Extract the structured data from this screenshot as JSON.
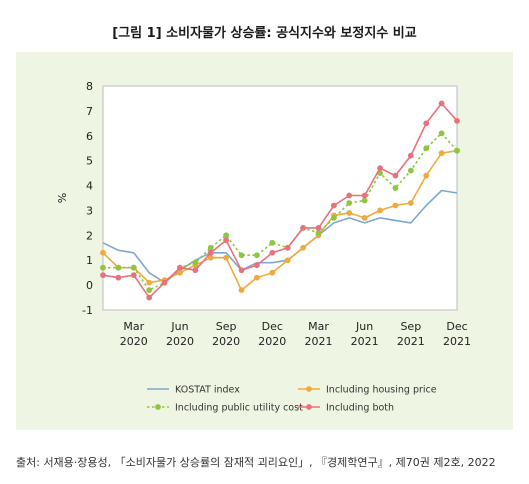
{
  "title": "[그림 1] 소비자물가 상승률: 공식지수와 보정지수 비교",
  "source": "출처: 서재용·장용성, 「소비자물가 상승률의 잠재적 괴리요인」, 『경제학연구』, 제70권 제2호, 2022",
  "chart_data": {
    "type": "line",
    "ylabel": "%",
    "ylim": [
      -1,
      8
    ],
    "yticks": [
      -1,
      0,
      1,
      2,
      3,
      4,
      5,
      6,
      7,
      8
    ],
    "xticks": [
      {
        "month": "Mar",
        "year": "2020",
        "index": 2
      },
      {
        "month": "Jun",
        "year": "2020",
        "index": 5
      },
      {
        "month": "Sep",
        "year": "2020",
        "index": 8
      },
      {
        "month": "Dec",
        "year": "2020",
        "index": 11
      },
      {
        "month": "Mar",
        "year": "2021",
        "index": 14
      },
      {
        "month": "Jun",
        "year": "2021",
        "index": 17
      },
      {
        "month": "Sep",
        "year": "2021",
        "index": 20
      },
      {
        "month": "Dec",
        "year": "2021",
        "index": 23
      }
    ],
    "x": [
      "2020-01",
      "2020-02",
      "2020-03",
      "2020-04",
      "2020-05",
      "2020-06",
      "2020-07",
      "2020-08",
      "2020-09",
      "2020-10",
      "2020-11",
      "2020-12",
      "2021-01",
      "2021-02",
      "2021-03",
      "2021-04",
      "2021-05",
      "2021-06",
      "2021-07",
      "2021-08",
      "2021-09",
      "2021-10",
      "2021-11",
      "2021-12"
    ],
    "series": [
      {
        "name": "KOSTAT index",
        "color": "#7fa7cf",
        "style": "solid",
        "marker": false,
        "values": [
          1.7,
          1.4,
          1.3,
          0.5,
          0.1,
          0.6,
          1.0,
          1.3,
          1.3,
          0.6,
          0.9,
          0.9,
          1.0,
          1.5,
          2.0,
          2.5,
          2.7,
          2.5,
          2.7,
          2.6,
          2.5,
          3.2,
          3.8,
          3.7
        ]
      },
      {
        "name": "Including housing price",
        "color": "#f2a93b",
        "style": "solid",
        "marker": true,
        "values": [
          1.3,
          0.7,
          0.7,
          0.1,
          0.2,
          0.5,
          0.8,
          1.1,
          1.1,
          -0.2,
          0.3,
          0.5,
          1.0,
          1.5,
          2.0,
          2.8,
          2.9,
          2.7,
          3.0,
          3.2,
          3.3,
          4.4,
          5.3,
          5.4
        ]
      },
      {
        "name": "Including public utility cost",
        "color": "#8dc63f",
        "style": "dotted",
        "marker": true,
        "values": [
          0.7,
          0.7,
          0.7,
          -0.2,
          0.1,
          0.7,
          0.9,
          1.5,
          2.0,
          1.2,
          1.2,
          1.7,
          1.5,
          2.3,
          2.1,
          2.7,
          3.3,
          3.4,
          4.5,
          3.9,
          4.6,
          5.5,
          6.1,
          5.4
        ]
      },
      {
        "name": "Including both",
        "color": "#e8717d",
        "style": "solid",
        "marker": true,
        "values": [
          0.4,
          0.3,
          0.4,
          -0.5,
          0.1,
          0.7,
          0.6,
          1.3,
          1.8,
          0.6,
          0.8,
          1.3,
          1.5,
          2.3,
          2.3,
          3.2,
          3.6,
          3.6,
          4.7,
          4.4,
          5.2,
          6.5,
          7.3,
          6.6
        ]
      }
    ],
    "legend": {
      "placement": "bottom",
      "columns": 2,
      "order": [
        "KOSTAT index",
        "Including housing price",
        "Including public utility cost",
        "Including both"
      ]
    }
  }
}
